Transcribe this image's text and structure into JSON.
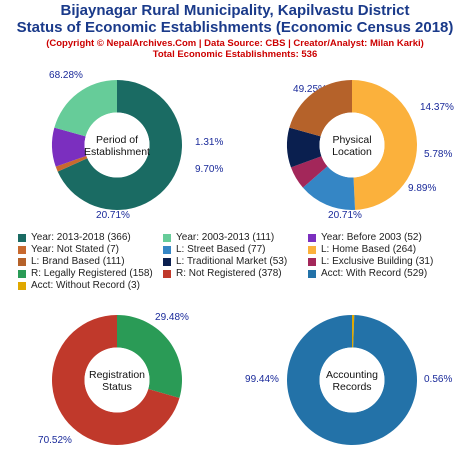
{
  "header": {
    "title_line1": "Bijaynagar Rural Municipality, Kapilvastu District",
    "title_line2": "Status of Economic Establishments (Economic Census 2018)",
    "copyright": "(Copyright © NepalArchives.Com | Data Source: CBS | Creator/Analyst: Milan Karki)",
    "total": "Total Economic Establishments: 536"
  },
  "chart_data": [
    {
      "type": "pie",
      "center_label": [
        "Period of",
        "Establishment"
      ],
      "slices": [
        {
          "name": "Year: 2013-2018",
          "value": 366,
          "label": "68.28%",
          "color": "#1a6b63"
        },
        {
          "name": "Year: Not Stated",
          "value": 7,
          "label": "1.31%",
          "color": "#c8692e"
        },
        {
          "name": "Year: Before 2003",
          "value": 52,
          "label": "9.70%",
          "color": "#7b2fbf"
        },
        {
          "name": "Year: 2003-2013",
          "value": 111,
          "label": "20.71%",
          "color": "#66cc99"
        }
      ]
    },
    {
      "type": "pie",
      "center_label": [
        "Physical",
        "Location"
      ],
      "slices": [
        {
          "name": "L: Home Based",
          "value": 264,
          "label": "49.25%",
          "color": "#fbb13c"
        },
        {
          "name": "L: Street Based",
          "value": 77,
          "label": "14.37%",
          "color": "#3586c5"
        },
        {
          "name": "L: Exclusive Building",
          "value": 31,
          "label": "5.78%",
          "color": "#a3275a"
        },
        {
          "name": "L: Traditional Market",
          "value": 53,
          "label": "9.89%",
          "color": "#0a1f4f"
        },
        {
          "name": "L: Brand Based",
          "value": 111,
          "label": "20.71%",
          "color": "#b5622a"
        }
      ]
    },
    {
      "type": "pie",
      "center_label": [
        "Registration",
        "Status"
      ],
      "slices": [
        {
          "name": "R: Legally Registered",
          "value": 158,
          "label": "29.48%",
          "color": "#2a9b56"
        },
        {
          "name": "R: Not Registered",
          "value": 378,
          "label": "70.52%",
          "color": "#c0392b"
        }
      ]
    },
    {
      "type": "pie",
      "center_label": [
        "Accounting",
        "Records"
      ],
      "slices": [
        {
          "name": "Acct: Without Record",
          "value": 3,
          "label": "0.56%",
          "color": "#e0a800"
        },
        {
          "name": "Acct: With Record",
          "value": 529,
          "label": "99.44%",
          "color": "#2372a8"
        }
      ]
    }
  ],
  "legend": [
    [
      {
        "label": "Year: 2013-2018 (366)",
        "color": "#1a6b63"
      },
      {
        "label": "Year: 2003-2013 (111)",
        "color": "#66cc99"
      },
      {
        "label": "Year: Before 2003 (52)",
        "color": "#7b2fbf"
      }
    ],
    [
      {
        "label": "Year: Not Stated (7)",
        "color": "#c8692e"
      },
      {
        "label": "L: Street Based (77)",
        "color": "#3586c5"
      },
      {
        "label": "L: Home Based (264)",
        "color": "#fbb13c"
      }
    ],
    [
      {
        "label": "L: Brand Based (111)",
        "color": "#b5622a"
      },
      {
        "label": "L: Traditional Market (53)",
        "color": "#0a1f4f"
      },
      {
        "label": "L: Exclusive Building (31)",
        "color": "#a3275a"
      }
    ],
    [
      {
        "label": "R: Legally Registered (158)",
        "color": "#2a9b56"
      },
      {
        "label": "R: Not Registered (378)",
        "color": "#c0392b"
      },
      {
        "label": "Acct: With Record (529)",
        "color": "#2372a8"
      }
    ],
    [
      {
        "label": "Acct: Without Record (3)",
        "color": "#e0a800"
      }
    ]
  ]
}
